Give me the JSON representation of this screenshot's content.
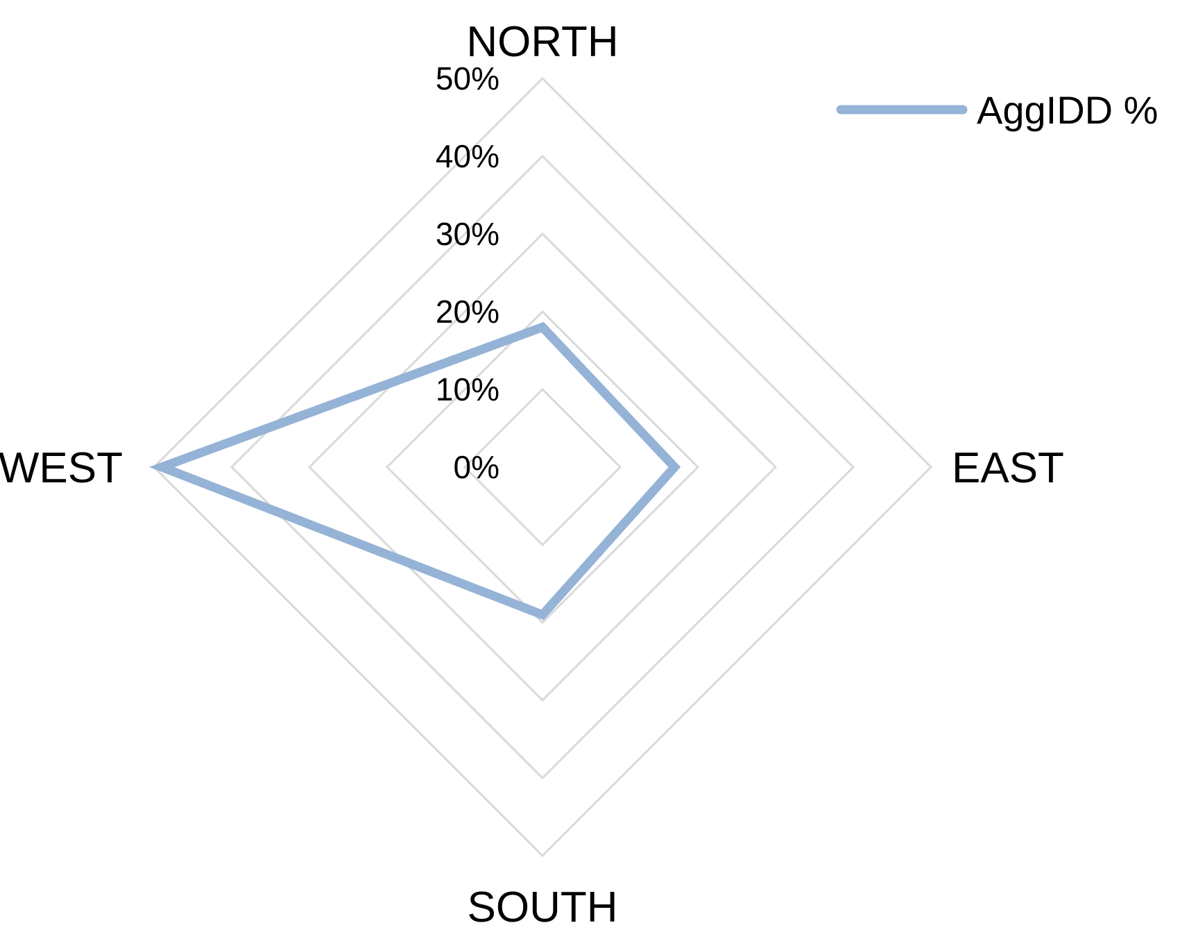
{
  "chart_data": {
    "type": "radar",
    "title": "",
    "categories": [
      "NORTH",
      "EAST",
      "SOUTH",
      "WEST"
    ],
    "tick_labels": [
      "0%",
      "10%",
      "20%",
      "30%",
      "40%",
      "50%"
    ],
    "rlim": [
      0,
      50
    ],
    "tick_step": 10,
    "grid": true,
    "legend_position": "top-right",
    "series": [
      {
        "name": "AggIDD %",
        "color": "#95b3d7",
        "values": [
          18,
          17,
          19,
          49
        ]
      }
    ]
  }
}
